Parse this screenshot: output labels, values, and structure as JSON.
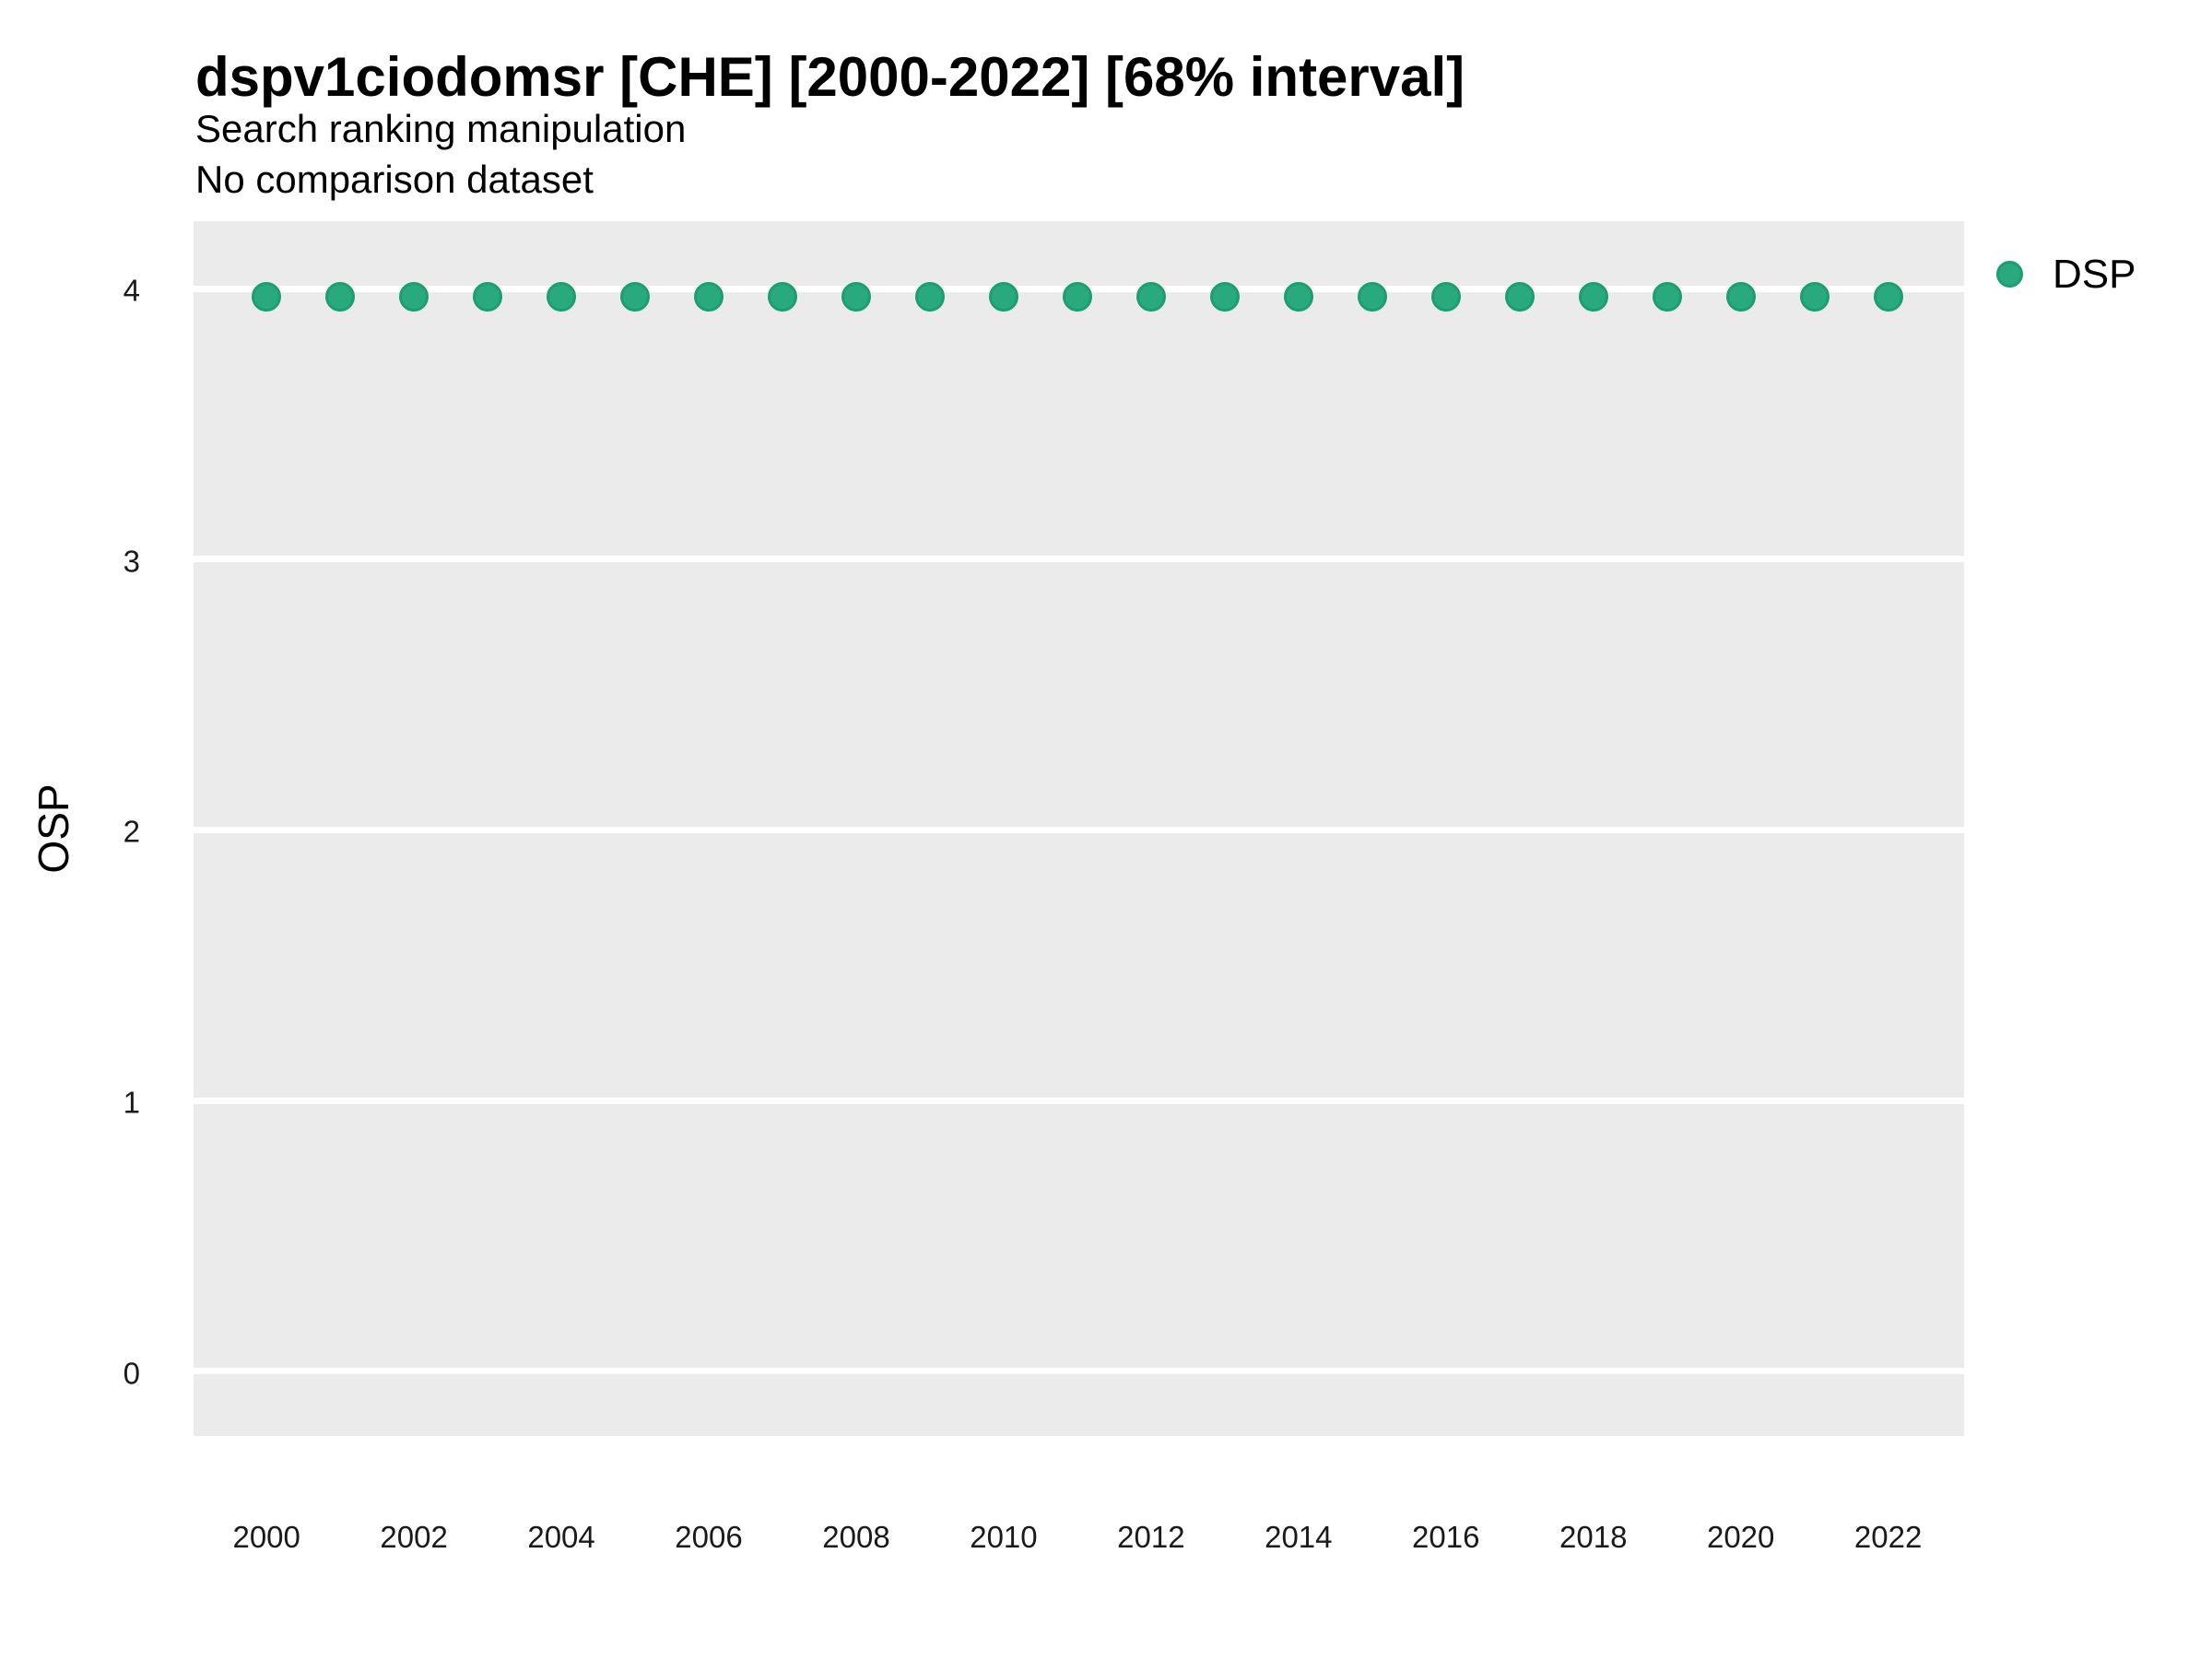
{
  "chart_data": {
    "type": "scatter",
    "title": "dspv1ciodomsr [CHE] [2000-2022] [68% interval]",
    "subtitle": "Search ranking manipulation",
    "note": "No comparison dataset",
    "xlabel": "",
    "ylabel": "OSP",
    "legend": {
      "position": "right",
      "entries": [
        {
          "label": "DSP",
          "color": "#2aa87e"
        }
      ]
    },
    "x": [
      2000,
      2001,
      2002,
      2003,
      2004,
      2005,
      2006,
      2007,
      2008,
      2009,
      2010,
      2011,
      2012,
      2013,
      2014,
      2015,
      2016,
      2017,
      2018,
      2019,
      2020,
      2021,
      2022
    ],
    "series": [
      {
        "name": "DSP",
        "values": [
          3.97,
          3.97,
          3.97,
          3.97,
          3.97,
          3.97,
          3.97,
          3.97,
          3.97,
          3.97,
          3.97,
          3.97,
          3.97,
          3.97,
          3.97,
          3.97,
          3.97,
          3.97,
          3.97,
          3.97,
          3.97,
          3.97,
          3.97
        ]
      }
    ],
    "xlim": [
      1999.01,
      2023.03
    ],
    "ylim": [
      -0.24,
      4.25
    ],
    "x_ticks": [
      2000,
      2002,
      2004,
      2006,
      2008,
      2010,
      2012,
      2014,
      2016,
      2018,
      2020,
      2022
    ],
    "y_ticks": [
      0,
      1,
      2,
      3,
      4
    ],
    "grid": "horizontal-major-only",
    "colors": {
      "panel_bg": "#ebebeb",
      "grid": "#ffffff",
      "point_fill": "#2aa87e",
      "point_stroke": "#1d9e6f",
      "title_text": "#000000",
      "axis_text": "#1a1a1a"
    }
  }
}
